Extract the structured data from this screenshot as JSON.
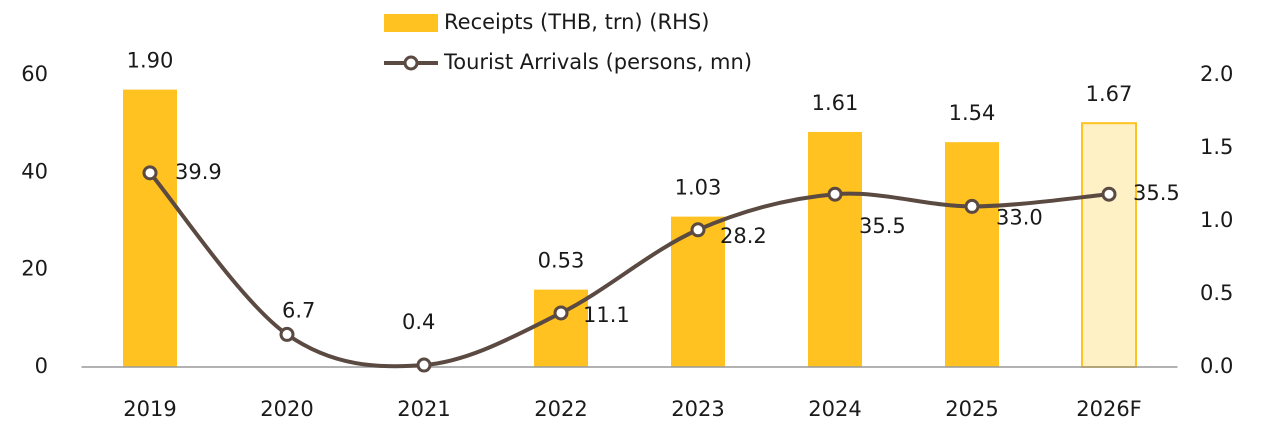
{
  "chart_data": {
    "type": "bar_line",
    "categories": [
      "2019",
      "2020",
      "2021",
      "2022",
      "2023",
      "2024",
      "2025",
      "2026F"
    ],
    "series": [
      {
        "name": "Receipts (THB, trn) (RHS)",
        "type": "bar",
        "axis": "y2",
        "color": "#FFC220",
        "colors": [
          "#FFC220",
          "#FFC220",
          "#FFC220",
          "#FFC220",
          "#FFC220",
          "#FFC220",
          "#FFC220",
          "#FFF1C6"
        ],
        "values": [
          1.9,
          null,
          null,
          0.53,
          1.03,
          1.61,
          1.54,
          1.67
        ],
        "value_labels": [
          "1.90",
          null,
          null,
          "0.53",
          "1.03",
          "1.61",
          "1.54",
          "1.67"
        ]
      },
      {
        "name": "Tourist Arrivals (persons, mn)",
        "type": "line",
        "axis": "y",
        "color": "#5B4A42",
        "values": [
          39.9,
          6.7,
          0.4,
          11.1,
          28.2,
          35.5,
          33.0,
          35.5
        ],
        "value_labels": [
          "39.9",
          "6.7",
          "0.4",
          "11.1",
          "28.2",
          "35.5",
          "33.0",
          "35.5"
        ]
      }
    ],
    "ylim": [
      0,
      60
    ],
    "yticks": [
      0,
      20,
      40,
      60
    ],
    "y2lim": [
      0,
      2
    ],
    "y2ticks": [
      {
        "value": 0,
        "label": "0.0"
      },
      {
        "value": 0.5,
        "label": "0.5"
      },
      {
        "value": 1,
        "label": "1.0"
      },
      {
        "value": 1.5,
        "label": "1.5"
      },
      {
        "value": 2,
        "label": "2.0"
      }
    ],
    "legend": "top"
  }
}
